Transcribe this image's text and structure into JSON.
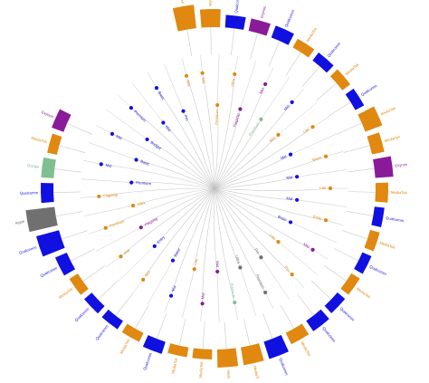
{
  "colors": {
    "Qualcomm": "#1010e0",
    "MediaTek": "#e08810",
    "Apple": "#707070",
    "Samsung": "#8a1a9a",
    "Google": "#80c090",
    "link": "#c8c8c8"
  },
  "ring": [
    {
      "label": "MediaTek",
      "brand": "MediaTek",
      "value": 3
    },
    {
      "label": "MediaTek",
      "brand": "MediaTek",
      "value": 2
    },
    {
      "label": "Qualcomm",
      "brand": "Qualcomm",
      "value": 1
    },
    {
      "label": "Exynos",
      "brand": "Samsung",
      "value": 1
    },
    {
      "label": "Qualcomm",
      "brand": "Qualcomm",
      "value": 1
    },
    {
      "label": "MediaTek",
      "brand": "MediaTek",
      "value": 0.5
    },
    {
      "label": "Qualcomm",
      "brand": "Qualcomm",
      "value": 0.5
    },
    {
      "label": "MediaTek",
      "brand": "MediaTek",
      "value": 0.5
    },
    {
      "label": "Qualcomm",
      "brand": "Qualcomm",
      "value": 0.5
    },
    {
      "label": "MediaTek",
      "brand": "MediaTek",
      "value": 2
    },
    {
      "label": "MediaTek",
      "brand": "MediaTek",
      "value": 1
    },
    {
      "label": "Exynos",
      "brand": "Samsung",
      "value": 2
    },
    {
      "label": "MediaTek",
      "brand": "MediaTek",
      "value": 1
    },
    {
      "label": "Qualcomm",
      "brand": "Qualcomm",
      "value": 0.5
    },
    {
      "label": "MediaTek",
      "brand": "MediaTek",
      "value": 0.5
    },
    {
      "label": "Qualcomm",
      "brand": "Qualcomm",
      "value": 0.5
    },
    {
      "label": "MediaTek",
      "brand": "MediaTek",
      "value": 0.5
    },
    {
      "label": "Qualcomm",
      "brand": "Qualcomm",
      "value": 0.5
    },
    {
      "label": "Qualcomm",
      "brand": "Qualcomm",
      "value": 1
    },
    {
      "label": "MediaTek",
      "brand": "MediaTek",
      "value": 1
    },
    {
      "label": "Qualcomm",
      "brand": "Qualcomm",
      "value": 2
    },
    {
      "label": "MediaTek",
      "brand": "MediaTek",
      "value": 2
    },
    {
      "label": "MediaTek",
      "brand": "MediaTek",
      "value": 2
    },
    {
      "label": "MediaTek",
      "brand": "MediaTek",
      "value": 0.5
    },
    {
      "label": "MediaTek",
      "brand": "MediaTek",
      "value": 0.5
    },
    {
      "label": "Qualcomm",
      "brand": "Qualcomm",
      "value": 1
    },
    {
      "label": "MediaTek",
      "brand": "MediaTek",
      "value": 0.5
    },
    {
      "label": "Qualcomm",
      "brand": "Qualcomm",
      "value": 0.5
    },
    {
      "label": "Qualcomm",
      "brand": "Qualcomm",
      "value": 0.5
    },
    {
      "label": "MediaTek",
      "brand": "MediaTek",
      "value": 0.5
    },
    {
      "label": "Qualcomm",
      "brand": "Qualcomm",
      "value": 1
    },
    {
      "label": "Qualcomm",
      "brand": "Qualcomm",
      "value": 3
    },
    {
      "label": "Apple",
      "brand": "Apple",
      "value": 4
    },
    {
      "label": "Qualcomm",
      "brand": "Qualcomm",
      "value": 1
    },
    {
      "label": "Google",
      "brand": "Google",
      "value": 1
    },
    {
      "label": "MediaTek",
      "brand": "MediaTek",
      "value": 0.5
    },
    {
      "label": "Exynos",
      "brand": "Samsung",
      "value": 1
    }
  ],
  "leaves": [
    {
      "label": "Mid",
      "brand": "MediaTek"
    },
    {
      "label": "Premium",
      "brand": "MediaTek"
    },
    {
      "label": "Ultra",
      "brand": "MediaTek"
    },
    {
      "label": "Flagship",
      "brand": "Samsung"
    },
    {
      "label": "Mid",
      "brand": "Samsung"
    },
    {
      "label": "Premium",
      "brand": "Google"
    },
    {
      "label": "Mid",
      "brand": "Qualcomm"
    },
    {
      "label": "Mid",
      "brand": "MediaTek"
    },
    {
      "label": "Lite",
      "brand": "MediaTek"
    },
    {
      "label": "Mid",
      "brand": "Qualcomm"
    },
    {
      "label": "Basic",
      "brand": "MediaTek"
    },
    {
      "label": "Mid",
      "brand": "Qualcomm"
    },
    {
      "label": "Lite",
      "brand": "MediaTek"
    },
    {
      "label": "Mid",
      "brand": "Qualcomm"
    },
    {
      "label": "Entry",
      "brand": "MediaTek"
    },
    {
      "label": "Basic",
      "brand": "Qualcomm"
    },
    {
      "label": "Mid",
      "brand": "Samsung"
    },
    {
      "label": "Lite",
      "brand": "MediaTek"
    },
    {
      "label": "Pro",
      "brand": "MediaTek"
    },
    {
      "label": "Pro",
      "brand": "Apple"
    },
    {
      "label": "Premium",
      "brand": "Apple"
    },
    {
      "label": "Ultra",
      "brand": "Apple"
    },
    {
      "label": "Premium",
      "brand": "Google"
    },
    {
      "label": "Mid",
      "brand": "Samsung"
    },
    {
      "label": "Mid",
      "brand": "Samsung"
    },
    {
      "label": "Lite",
      "brand": "MediaTek"
    },
    {
      "label": "Mid",
      "brand": "Qualcomm"
    },
    {
      "label": "Basic",
      "brand": "Qualcomm"
    },
    {
      "label": "Mid",
      "brand": "MediaTek"
    },
    {
      "label": "Entry",
      "brand": "Qualcomm"
    },
    {
      "label": "Mid",
      "brand": "MediaTek"
    },
    {
      "label": "Flagship",
      "brand": "Samsung"
    },
    {
      "label": "Premium",
      "brand": "MediaTek"
    },
    {
      "label": "Ultra",
      "brand": "MediaTek"
    },
    {
      "label": "Flagship",
      "brand": "MediaTek"
    },
    {
      "label": "Premium",
      "brand": "Qualcomm"
    },
    {
      "label": "Mid",
      "brand": "Qualcomm"
    },
    {
      "label": "Basic",
      "brand": "Qualcomm"
    },
    {
      "label": "Mid",
      "brand": "Qualcomm"
    },
    {
      "label": "Budget",
      "brand": "Qualcomm"
    },
    {
      "label": "Premium",
      "brand": "Qualcomm"
    },
    {
      "label": "Mid",
      "brand": "Qualcomm"
    },
    {
      "label": "Basic",
      "brand": "Qualcomm"
    },
    {
      "label": "Pro",
      "brand": "Qualcomm"
    },
    {
      "label": "Mid",
      "brand": "MediaTek"
    }
  ]
}
